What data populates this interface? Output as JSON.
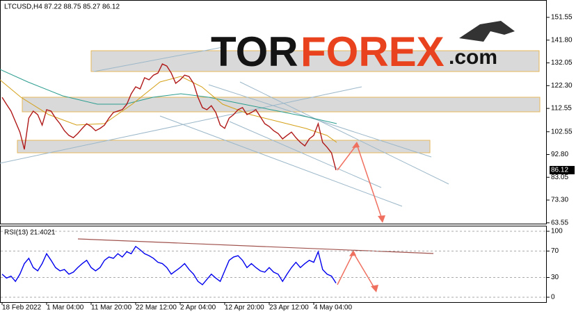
{
  "chart_data": [
    {
      "type": "line",
      "title": "LTCUSD,H4 87.22 88.75 85.27 86.12",
      "color": "#b01818",
      "values": [
        117.3,
        114.3,
        111.4,
        106.9,
        102.4,
        95,
        108.4,
        111.4,
        109.9,
        105.4,
        112,
        111.4,
        108.4,
        106,
        103,
        101,
        100,
        101.8,
        104,
        106,
        104.8,
        103,
        104,
        105.4,
        108.4,
        110.8,
        111.4,
        112,
        114.3,
        118.8,
        121.8,
        120.9,
        125.7,
        124.8,
        126.8,
        127.7,
        131.6,
        130.7,
        127.7,
        123.3,
        124.8,
        126.8,
        126.2,
        123.3,
        117.3,
        112.9,
        112,
        113.7,
        110.8,
        105.4,
        104,
        108.4,
        109.9,
        112,
        112.9,
        109.9,
        110.8,
        112,
        109,
        106,
        104.8,
        103,
        101.8,
        99.5,
        101,
        102.4,
        100,
        98,
        96.5,
        99.5,
        101,
        106,
        98,
        95.9,
        93.5,
        86.12
      ],
      "ylim": [
        62.9,
        157.8
      ],
      "yticks": [
        151.55,
        {
          "value": 141.8,
          "label": "141.80"
        },
        132.05,
        {
          "value": 122.3,
          "label": "122.30"
        },
        112.55,
        102.55,
        {
          "value": 92.8,
          "label": "92.80"
        },
        83.05,
        {
          "value": 73.3,
          "label": "73.30"
        },
        63.55
      ],
      "grid": false
    },
    {
      "type": "line",
      "title": "RSI(13) 21.4021",
      "color": "#0000ee",
      "categories": [
        "18 Feb 2022",
        null,
        null,
        null,
        null,
        null,
        null,
        null,
        null,
        null,
        "1 Mar 04:00",
        null,
        null,
        null,
        null,
        null,
        null,
        null,
        null,
        null,
        "11 Mar 20:00",
        null,
        null,
        null,
        null,
        null,
        null,
        null,
        null,
        null,
        "22 Mar 12:00",
        null,
        null,
        null,
        null,
        null,
        null,
        null,
        null,
        null,
        "2 Apr 04:00",
        null,
        null,
        null,
        null,
        null,
        null,
        null,
        null,
        null,
        "12 Apr 20:00",
        null,
        null,
        null,
        null,
        null,
        null,
        null,
        null,
        null,
        "23 Apr 12:00",
        null,
        null,
        null,
        null,
        null,
        null,
        null,
        null,
        null,
        "4 May 04:00",
        null,
        null,
        null,
        null,
        null
      ],
      "values": [
        35,
        29,
        32,
        24,
        35,
        51,
        59,
        45,
        40,
        51,
        66,
        56,
        45,
        40,
        42,
        35,
        38,
        45,
        51,
        56,
        45,
        40,
        45,
        56,
        61,
        59,
        66,
        61,
        69,
        66,
        77,
        72,
        66,
        63,
        59,
        53,
        51,
        45,
        35,
        40,
        45,
        51,
        42,
        35,
        24,
        19,
        27,
        35,
        29,
        24,
        40,
        56,
        61,
        63,
        56,
        45,
        51,
        45,
        40,
        38,
        45,
        38,
        35,
        24,
        35,
        45,
        53,
        45,
        51,
        56,
        53,
        69,
        42,
        35,
        32,
        21.4021
      ],
      "ylim": [
        -7.4,
        107.4
      ],
      "yticks": [
        100,
        70,
        30,
        0
      ],
      "grid": true
    }
  ],
  "logo": {
    "first": "TOR",
    "second": "FOREX",
    "suffix": ".com"
  }
}
